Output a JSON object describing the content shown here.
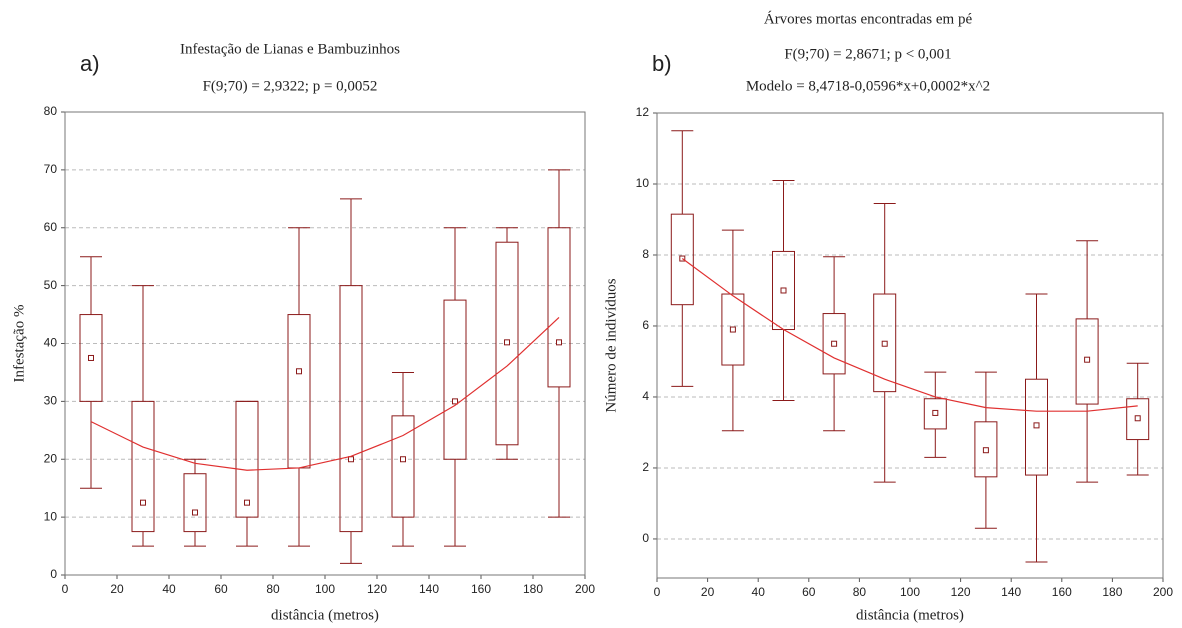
{
  "chart_data": [
    {
      "type": "box",
      "panel_label": "a)",
      "title_lines": [
        "Infestação de Lianas e Bambuzinhos",
        "F(9;70) = 2,9322; p = 0,0052"
      ],
      "xlabel": "distância (metros)",
      "ylabel": "Infestação %",
      "x": [
        10,
        30,
        50,
        70,
        90,
        110,
        130,
        150,
        170,
        190
      ],
      "whisker_low": [
        15,
        5,
        5,
        5,
        5,
        2,
        5,
        5,
        20,
        10
      ],
      "q1": [
        30,
        7.5,
        7.5,
        10,
        18.5,
        7.5,
        10,
        20,
        22.5,
        32.5
      ],
      "center": [
        37.5,
        12.5,
        10.8,
        12.5,
        35.2,
        20,
        20,
        30,
        40.2,
        40.2
      ],
      "q3": [
        45,
        30,
        17.5,
        30,
        45,
        50,
        27.5,
        47.5,
        57.5,
        60
      ],
      "whisker_high": [
        55,
        50,
        20,
        30,
        60,
        65,
        35,
        60,
        60,
        70
      ],
      "fit": {
        "x": [
          10,
          30,
          50,
          70,
          90,
          110,
          130,
          150,
          170,
          190
        ],
        "values": [
          26.5,
          22.1,
          19.3,
          18.1,
          18.5,
          20.5,
          24.1,
          29.3,
          36.1,
          44.5
        ]
      },
      "color": "#8b1a1a",
      "fit_color": "#e03030",
      "xlim": [
        0,
        200
      ],
      "xticks": [
        0,
        20,
        40,
        60,
        80,
        100,
        120,
        140,
        160,
        180,
        200
      ],
      "ylim": [
        0,
        80
      ],
      "yticks": [
        0,
        10,
        20,
        30,
        40,
        50,
        60,
        70,
        80
      ],
      "grid": true
    },
    {
      "type": "box",
      "panel_label": "b)",
      "title_lines": [
        "Árvores mortas encontradas em pé",
        "F(9;70) = 2,8671; p < 0,001",
        "Modelo = 8,4718-0,0596*x+0,0002*x^2"
      ],
      "xlabel": "distância (metros)",
      "ylabel": "Número de indivíduos",
      "x": [
        10,
        30,
        50,
        70,
        90,
        110,
        130,
        150,
        170,
        190
      ],
      "whisker_low": [
        4.3,
        3.05,
        3.9,
        3.05,
        1.6,
        2.3,
        0.3,
        -0.65,
        1.6,
        1.8
      ],
      "q1": [
        6.6,
        4.9,
        5.9,
        4.65,
        4.15,
        3.1,
        1.75,
        1.8,
        3.8,
        2.8
      ],
      "center": [
        7.9,
        5.9,
        7.0,
        5.5,
        5.5,
        3.55,
        2.5,
        3.2,
        5.05,
        3.4
      ],
      "q3": [
        9.15,
        6.9,
        8.1,
        6.35,
        6.9,
        3.95,
        3.3,
        4.5,
        6.2,
        3.95
      ],
      "whisker_high": [
        11.5,
        8.7,
        10.1,
        7.95,
        9.45,
        4.7,
        4.7,
        6.9,
        8.4,
        4.95
      ],
      "fit": {
        "x": [
          10,
          30,
          50,
          70,
          90,
          110,
          130,
          150,
          170,
          190
        ],
        "values": [
          7.9,
          6.85,
          5.9,
          5.1,
          4.5,
          4.0,
          3.7,
          3.6,
          3.6,
          3.75
        ]
      },
      "color": "#8b1a1a",
      "fit_color": "#e03030",
      "xlim": [
        0,
        200
      ],
      "xticks": [
        0,
        20,
        40,
        60,
        80,
        100,
        120,
        140,
        160,
        180,
        200
      ],
      "ylim": [
        -1.1,
        12
      ],
      "yticks": [
        0,
        2,
        4,
        6,
        8,
        10,
        12
      ],
      "grid": true
    }
  ]
}
